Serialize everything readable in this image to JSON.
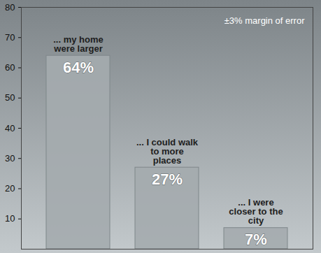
{
  "chart_data": {
    "type": "bar",
    "annotation": "±3% margin of error",
    "categories": [
      "... my home were larger",
      "... I could walk to more places",
      "... I were closer to the city"
    ],
    "values": [
      64,
      27,
      7
    ],
    "value_labels": [
      "64%",
      "27%",
      "7%"
    ],
    "color": "#a4abae",
    "ylim": [
      0,
      80
    ],
    "yticks": [
      10,
      20,
      30,
      40,
      50,
      60,
      70,
      80
    ],
    "data_labels": true,
    "tick_labels": "y"
  }
}
